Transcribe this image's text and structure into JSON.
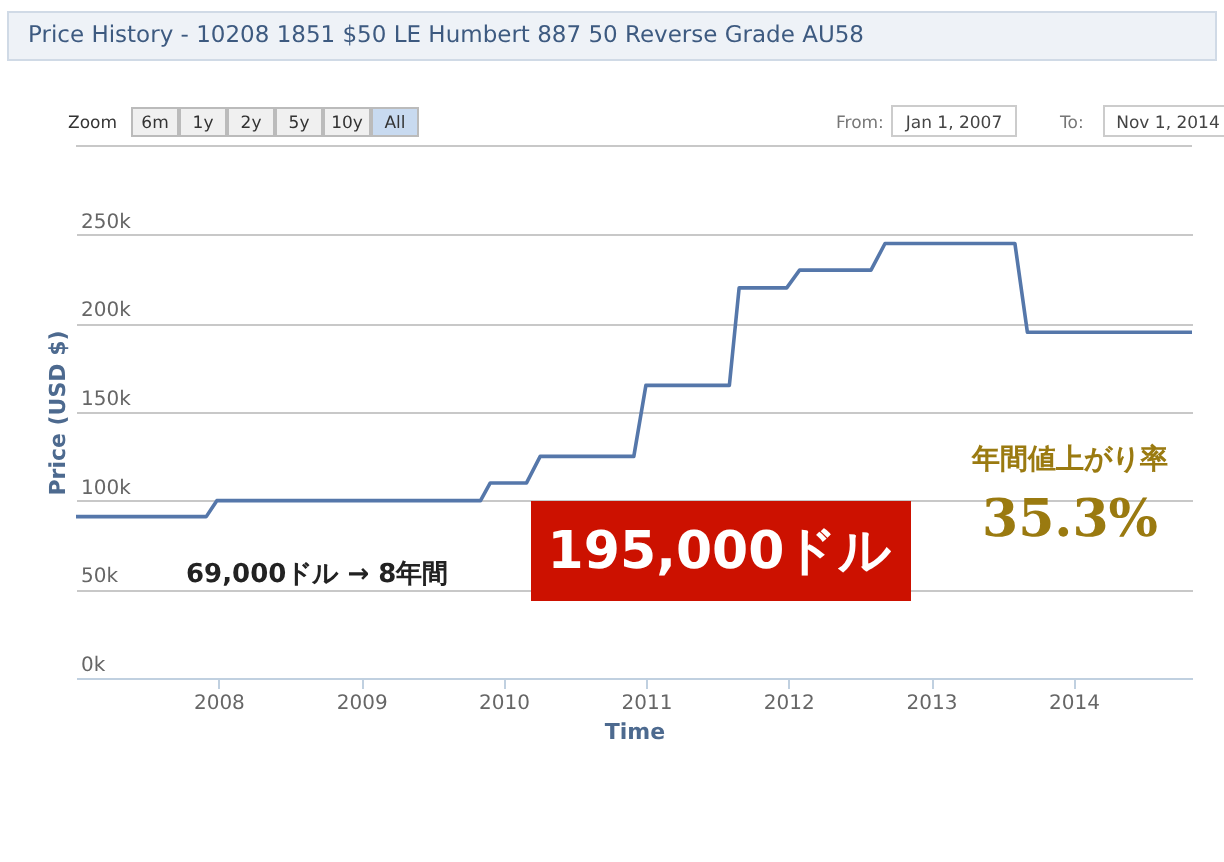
{
  "chart_data": {
    "type": "line",
    "title": "Price History - 10208 1851 $50 LE Humbert 887 50 Reverse Grade AU58",
    "xlabel": "Time",
    "ylabel": "Price (USD $)",
    "x": [
      "2007-01-01",
      "2007-12-01",
      "2007-12-28",
      "2009-11-03",
      "2009-11-28",
      "2010-03-01",
      "2010-04-05",
      "2010-12-01",
      "2011-01-01",
      "2011-08-03",
      "2011-08-28",
      "2011-12-28",
      "2012-01-30",
      "2012-07-31",
      "2012-09-05",
      "2013-08-04",
      "2013-09-05",
      "2014-11-01"
    ],
    "series": [
      {
        "color": "#5577aa",
        "values": [
          91000,
          91000,
          100000,
          100000,
          110000,
          110000,
          125000,
          125000,
          165000,
          165000,
          220000,
          220000,
          230000,
          230000,
          245000,
          245000,
          195000,
          195000
        ]
      }
    ],
    "xlim": [
      "2007-01-01",
      "2014-11-01"
    ],
    "xticks": [
      "2008",
      "2009",
      "2010",
      "2011",
      "2012",
      "2013",
      "2014"
    ],
    "ylim": [
      0,
      300000
    ],
    "yticks": [
      {
        "value": 0,
        "label": "0k"
      },
      {
        "value": 50000,
        "label": "50k"
      },
      {
        "value": 100000,
        "label": "100k"
      },
      {
        "value": 150000,
        "label": "150k"
      },
      {
        "value": 200000,
        "label": "200k"
      },
      {
        "value": 250000,
        "label": "250k"
      }
    ],
    "grid": "y",
    "legend": false,
    "marker": "none",
    "line_style": "solid",
    "annotations": [
      "Zoom",
      "6m",
      "1y",
      "2y",
      "5y",
      "10y",
      "All",
      "From:",
      "Jan 1, 2007",
      "To:",
      "Nov 1, 2014",
      "69,000ドル → 8年間",
      "195,000ドル",
      "年間値上がり率",
      "35.3%"
    ]
  }
}
